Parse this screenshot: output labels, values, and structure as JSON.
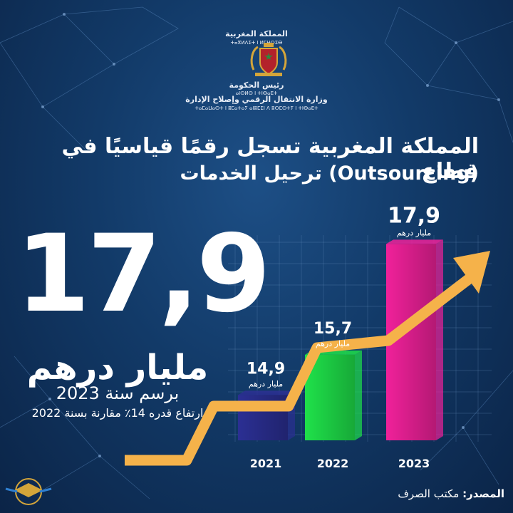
{
  "header": {
    "kingdom_ar": "المملكة المغربية",
    "kingdom_tif": "ⵜⴰⴳⵍⴷⵉⵜ ⵏ ⵍⵎⵖⵔⵉⴱ",
    "gov_head_ar": "رئيس الحكومة",
    "gov_head_tif": "ⴰⵏⵙⵍⵙ ⵏ ⵜⵏⴱⴰⴹⵜ",
    "ministry_ar": "وزارة الانتقال الرقمي وإصلاح الإدارة",
    "ministry_tif": "ⵜⴰⵎⴰⵡⴰⵙⵜ ⵏ ⵓⵎⴰⵜⴰⵢ ⴰⵏⵓⵎⵉⵏ ⴷ ⵓⵙⵎⵙⵜⵢ ⵏ ⵜⵏⴱⴰⴹⵜ"
  },
  "title": {
    "line1": "المملكة المغربية تسجل رقمًا قياسيًا في قطاع",
    "line2": "ترحيل الخدمات (Outsourcing)"
  },
  "headline": {
    "value": "17,9",
    "unit": "مليار درهم",
    "period": "برسم سنة 2023",
    "growth_note": "ارتفاع قدره 14٪ مقارنة بسنة 2022"
  },
  "source": {
    "label": "المصدر:",
    "value": "مكتب الصرف"
  },
  "colors": {
    "bar_2021": "#2b2f93",
    "bar_2022": "#1fe14a",
    "bar_2023": "#f0219a",
    "arrow": "#f5b24a"
  },
  "chart_data": {
    "type": "bar",
    "categories": [
      "2021",
      "2022",
      "2023"
    ],
    "values": [
      14.9,
      15.7,
      17.9
    ],
    "value_labels": [
      "14,9",
      "15,7",
      "17,9"
    ],
    "value_unit": "مليار درهم",
    "ylim": [
      14,
      18.5
    ],
    "grid": true,
    "legend": "none"
  }
}
